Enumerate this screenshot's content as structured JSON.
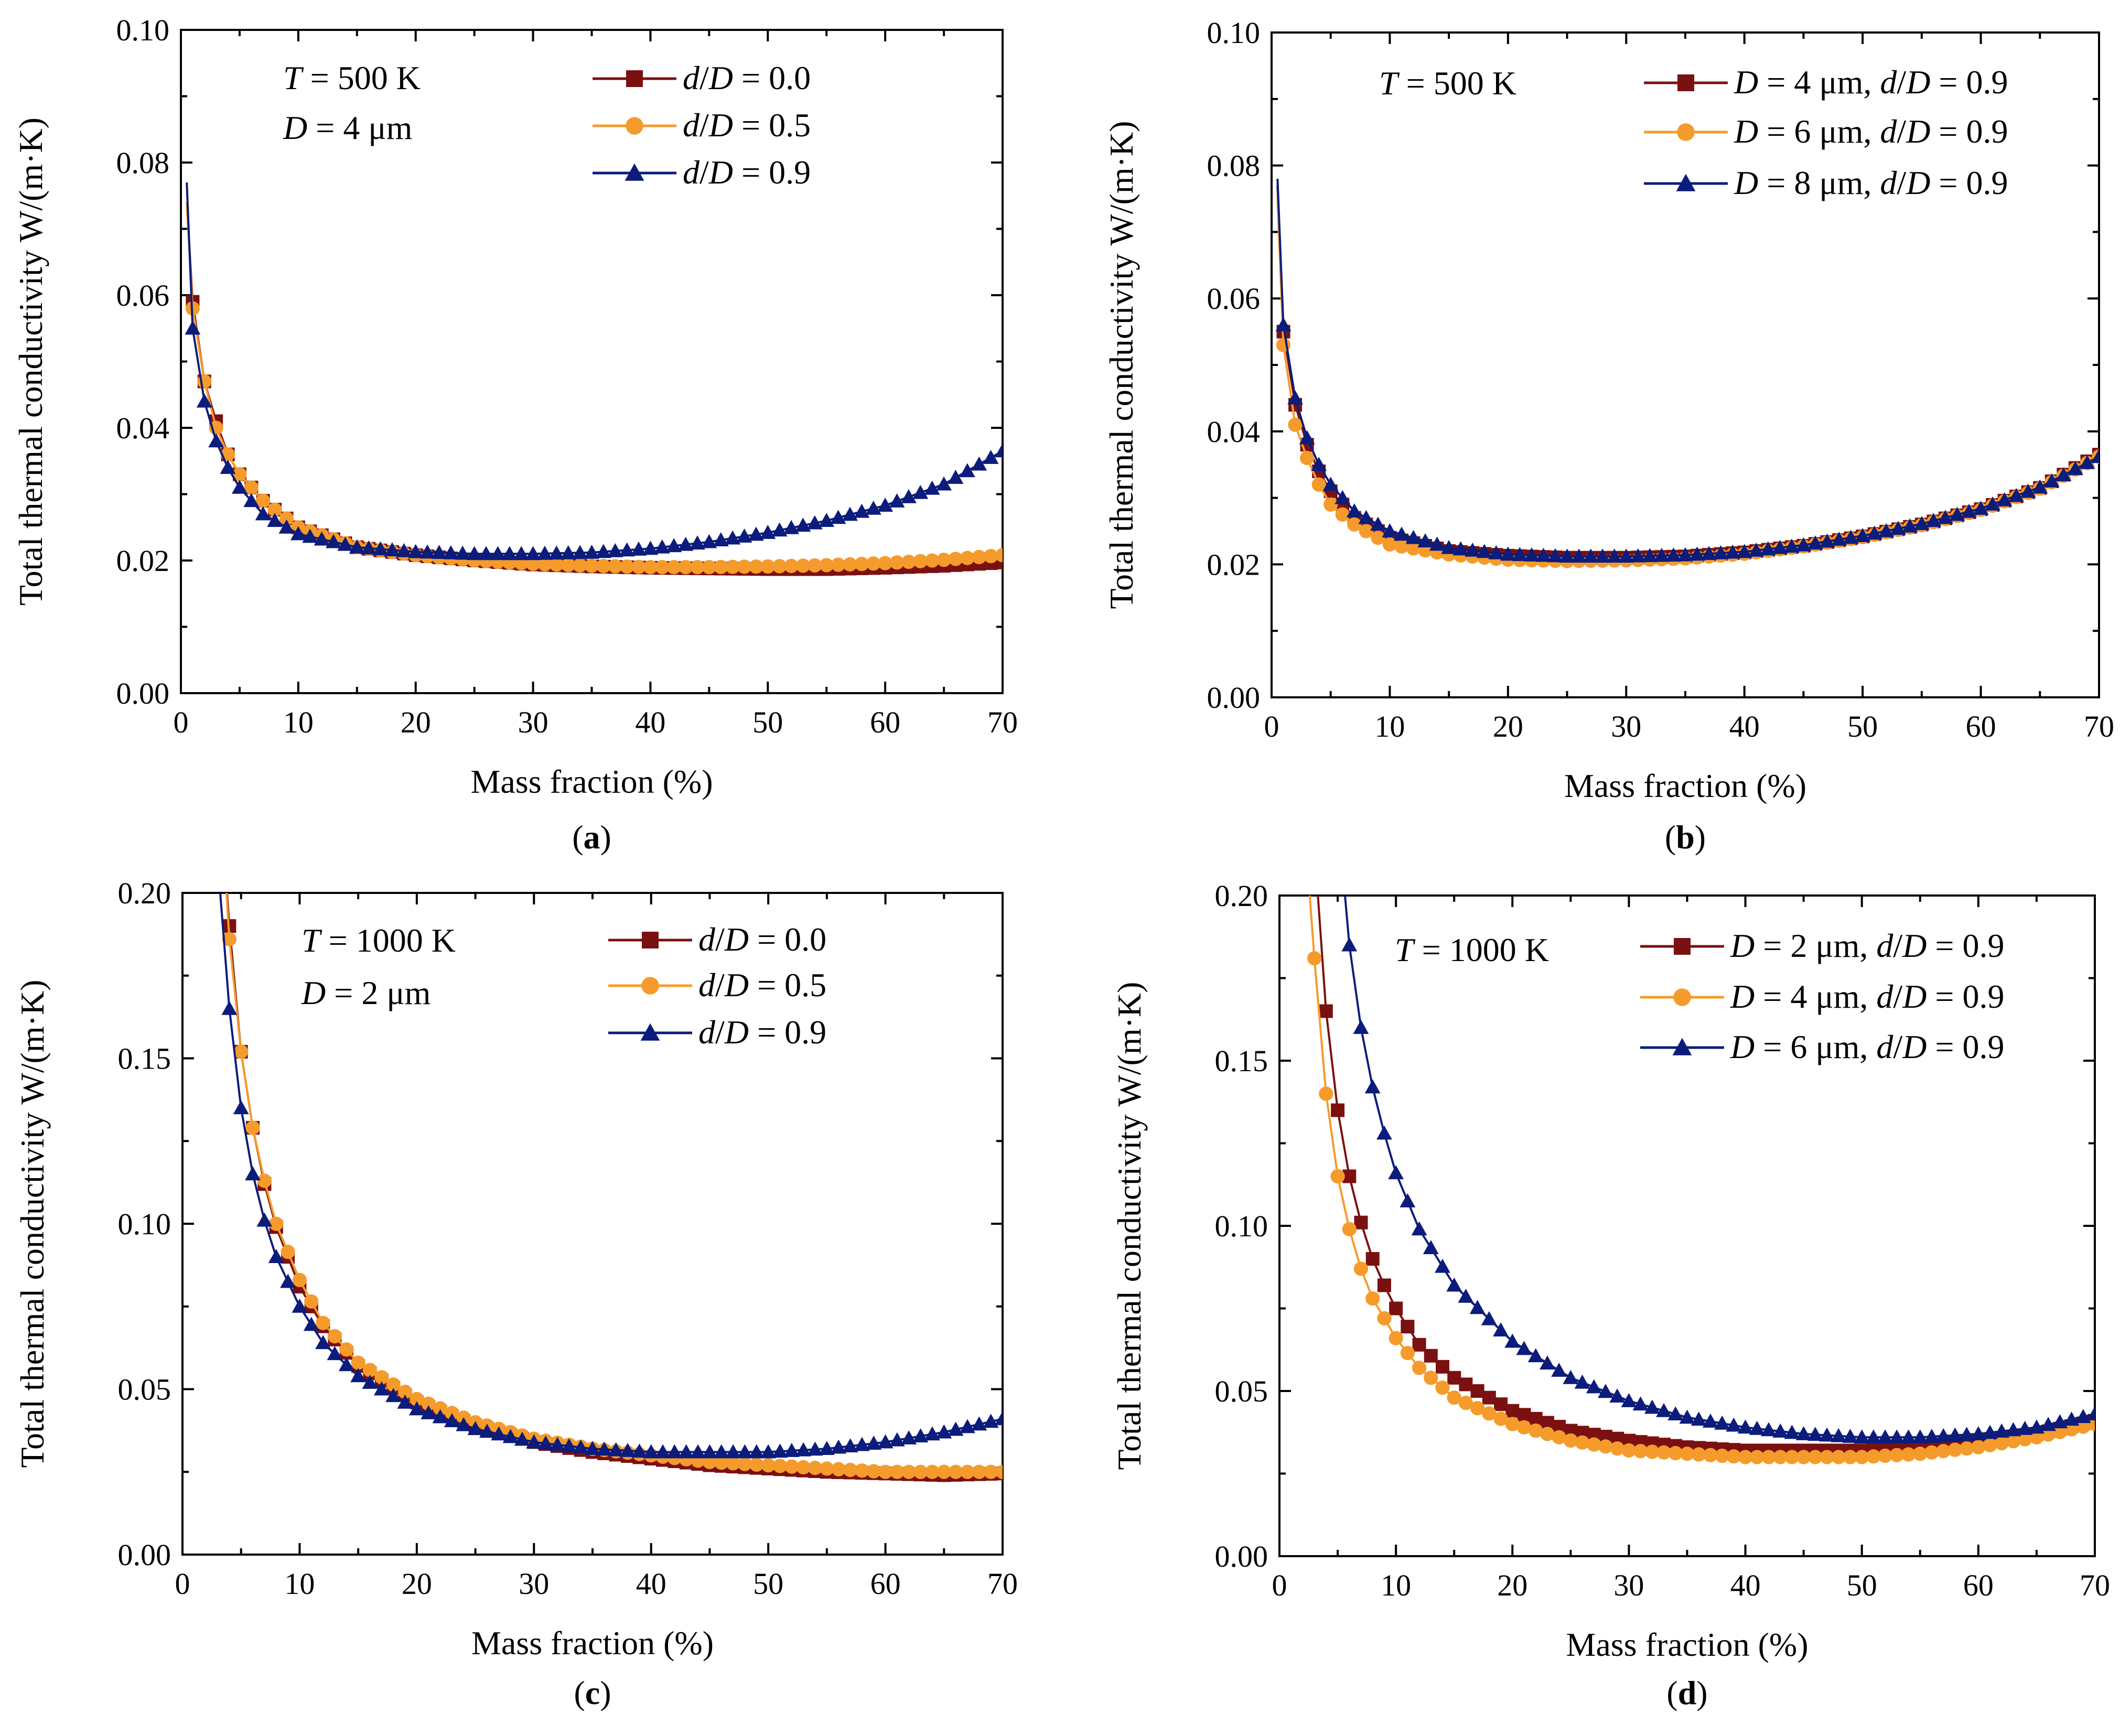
{
  "figure": {
    "panels": [
      {
        "id": "a",
        "label": "a",
        "annotations": [
          "T = 500 K",
          "D = 4 μm"
        ],
        "chart_series_style": [
          "square",
          "circle",
          "triangle"
        ]
      },
      {
        "id": "b",
        "label": "b",
        "annotations": [
          "T = 500 K"
        ],
        "chart_series_style": [
          "square",
          "circle",
          "triangle"
        ]
      },
      {
        "id": "c",
        "label": "c",
        "annotations": [
          "T = 1000 K",
          "D = 2 μm"
        ],
        "chart_series_style": [
          "square",
          "circle",
          "triangle"
        ]
      },
      {
        "id": "d",
        "label": "d",
        "annotations": [
          "T = 1000 K"
        ],
        "chart_series_style": [
          "square",
          "circle",
          "triangle"
        ]
      }
    ]
  },
  "colors": {
    "dark_red": "#7B1010",
    "orange": "#F59B2B",
    "navy": "#0C1C7C"
  },
  "chart_data": [
    {
      "type": "line",
      "title": "",
      "xlabel": "Mass fraction (%)",
      "ylabel": "Total thermal conductivity W/(m·K)",
      "xlim": [
        0,
        70
      ],
      "ylim": [
        0,
        0.1
      ],
      "xticks": [
        "0",
        "10",
        "20",
        "30",
        "40",
        "50",
        "60",
        "70"
      ],
      "yticks": [
        "0.00",
        "0.02",
        "0.04",
        "0.06",
        "0.08",
        "0.10"
      ],
      "legend_position": "top-right",
      "series": [
        {
          "name": "d/D = 0.0",
          "marker": "square",
          "color": "#7B1010",
          "x": [
            0.5,
            1,
            2,
            3,
            4,
            5,
            7,
            10,
            15,
            20,
            25,
            30,
            35,
            40,
            45,
            50,
            55,
            60,
            65,
            70
          ],
          "y": [
            0.074,
            0.059,
            0.047,
            0.041,
            0.036,
            0.033,
            0.029,
            0.025,
            0.022,
            0.0208,
            0.02,
            0.0194,
            0.0191,
            0.0189,
            0.0188,
            0.0187,
            0.0187,
            0.0189,
            0.0192,
            0.0197
          ]
        },
        {
          "name": "d/D = 0.5",
          "marker": "circle",
          "color": "#F59B2B",
          "x": [
            0.5,
            1,
            2,
            3,
            4,
            5,
            7,
            10,
            15,
            20,
            25,
            30,
            35,
            40,
            45,
            50,
            55,
            60,
            65,
            70
          ],
          "y": [
            0.074,
            0.058,
            0.047,
            0.04,
            0.036,
            0.033,
            0.029,
            0.025,
            0.022,
            0.0208,
            0.02,
            0.0195,
            0.0192,
            0.019,
            0.019,
            0.0191,
            0.0193,
            0.0196,
            0.0201,
            0.0208
          ]
        },
        {
          "name": "d/D = 0.9",
          "marker": "triangle",
          "color": "#0C1C7C",
          "x": [
            0.5,
            1,
            2,
            3,
            4,
            5,
            7,
            10,
            15,
            20,
            25,
            30,
            35,
            40,
            45,
            50,
            55,
            60,
            65,
            70
          ],
          "y": [
            0.077,
            0.055,
            0.044,
            0.038,
            0.034,
            0.031,
            0.027,
            0.024,
            0.022,
            0.0213,
            0.021,
            0.021,
            0.0212,
            0.0218,
            0.0228,
            0.0242,
            0.026,
            0.0283,
            0.0315,
            0.0365
          ]
        }
      ]
    },
    {
      "type": "line",
      "title": "",
      "xlabel": "Mass fraction (%)",
      "ylabel": "Total thermal conductivity W/(m·K)",
      "xlim": [
        0,
        70
      ],
      "ylim": [
        0,
        0.1
      ],
      "xticks": [
        "0",
        "10",
        "20",
        "30",
        "40",
        "50",
        "60",
        "70"
      ],
      "yticks": [
        "0.00",
        "0.02",
        "0.04",
        "0.06",
        "0.08",
        "0.10"
      ],
      "legend_position": "top-right",
      "series": [
        {
          "name": "D = 4 μm, d/D = 0.9",
          "marker": "square",
          "color": "#7B1010",
          "x": [
            0.5,
            1,
            2,
            3,
            4,
            5,
            7,
            10,
            15,
            20,
            25,
            30,
            35,
            40,
            45,
            50,
            55,
            60,
            65,
            70
          ],
          "y": [
            0.077,
            0.055,
            0.044,
            0.038,
            0.034,
            0.031,
            0.027,
            0.024,
            0.022,
            0.0213,
            0.021,
            0.021,
            0.0212,
            0.0218,
            0.0228,
            0.0242,
            0.026,
            0.0283,
            0.0315,
            0.0365
          ]
        },
        {
          "name": "D = 6 μm, d/D = 0.9",
          "marker": "circle",
          "color": "#F59B2B",
          "x": [
            0.5,
            1,
            2,
            3,
            4,
            5,
            7,
            10,
            15,
            20,
            25,
            30,
            35,
            40,
            45,
            50,
            55,
            60,
            65,
            70
          ],
          "y": [
            0.075,
            0.053,
            0.041,
            0.036,
            0.032,
            0.029,
            0.026,
            0.023,
            0.0215,
            0.0207,
            0.0205,
            0.0206,
            0.0209,
            0.0216,
            0.0227,
            0.0241,
            0.0259,
            0.0282,
            0.0314,
            0.0362
          ]
        },
        {
          "name": "D = 8 μm, d/D = 0.9",
          "marker": "triangle",
          "color": "#0C1C7C",
          "x": [
            0.5,
            1,
            2,
            3,
            4,
            5,
            7,
            10,
            15,
            20,
            25,
            30,
            35,
            40,
            45,
            50,
            55,
            60,
            65,
            70
          ],
          "y": [
            0.078,
            0.056,
            0.045,
            0.039,
            0.035,
            0.032,
            0.028,
            0.025,
            0.0225,
            0.0215,
            0.0212,
            0.0212,
            0.0214,
            0.0219,
            0.0229,
            0.0243,
            0.0261,
            0.0284,
            0.0316,
            0.0362
          ]
        }
      ]
    },
    {
      "type": "line",
      "title": "",
      "xlabel": "Mass fraction (%)",
      "ylabel": "Total thermal conductivity W/(m·K)",
      "xlim": [
        0,
        70
      ],
      "ylim": [
        0,
        0.2
      ],
      "xticks": [
        "0",
        "10",
        "20",
        "30",
        "40",
        "50",
        "60",
        "70"
      ],
      "yticks": [
        "0.00",
        "0.05",
        "0.10",
        "0.15",
        "0.20"
      ],
      "legend_position": "top-right",
      "series": [
        {
          "name": "d/D = 0.0",
          "marker": "square",
          "color": "#7B1010",
          "x": [
            3.5,
            4,
            5,
            6,
            7,
            8,
            10,
            12,
            15,
            20,
            25,
            30,
            35,
            40,
            45,
            50,
            55,
            60,
            65,
            70
          ],
          "y": [
            0.215,
            0.19,
            0.152,
            0.129,
            0.112,
            0.099,
            0.081,
            0.069,
            0.057,
            0.046,
            0.039,
            0.034,
            0.031,
            0.029,
            0.027,
            0.026,
            0.025,
            0.0245,
            0.024,
            0.0245
          ]
        },
        {
          "name": "d/D = 0.5",
          "marker": "circle",
          "color": "#F59B2B",
          "x": [
            3.5,
            4,
            5,
            6,
            7,
            8,
            10,
            12,
            15,
            20,
            25,
            30,
            35,
            40,
            45,
            50,
            55,
            60,
            65,
            70
          ],
          "y": [
            0.215,
            0.186,
            0.152,
            0.129,
            0.113,
            0.1,
            0.083,
            0.07,
            0.058,
            0.047,
            0.04,
            0.035,
            0.032,
            0.03,
            0.028,
            0.027,
            0.026,
            0.025,
            0.025,
            0.025
          ]
        },
        {
          "name": "d/D = 0.9",
          "marker": "triangle",
          "color": "#0C1C7C",
          "x": [
            3,
            4,
            5,
            6,
            7,
            8,
            10,
            12,
            15,
            20,
            25,
            30,
            35,
            40,
            45,
            50,
            55,
            60,
            65,
            70
          ],
          "y": [
            0.21,
            0.165,
            0.135,
            0.115,
            0.101,
            0.09,
            0.075,
            0.064,
            0.054,
            0.044,
            0.038,
            0.034,
            0.032,
            0.031,
            0.031,
            0.031,
            0.032,
            0.034,
            0.037,
            0.041
          ]
        }
      ]
    },
    {
      "type": "line",
      "title": "",
      "xlabel": "Mass fraction (%)",
      "ylabel": "Total thermal conductivity W/(m·K)",
      "xlim": [
        0,
        70
      ],
      "ylim": [
        0,
        0.2
      ],
      "xticks": [
        "0",
        "10",
        "20",
        "30",
        "40",
        "50",
        "60",
        "70"
      ],
      "yticks": [
        "0.00",
        "0.05",
        "0.10",
        "0.15",
        "0.20"
      ],
      "legend_position": "top-right",
      "series": [
        {
          "name": "D = 2 μm, d/D = 0.9",
          "marker": "square",
          "color": "#7B1010",
          "x": [
            3.2,
            4,
            5,
            6,
            7,
            8,
            9,
            10,
            12,
            15,
            20,
            25,
            30,
            35,
            40,
            45,
            50,
            55,
            60,
            65,
            70
          ],
          "y": [
            0.205,
            0.165,
            0.135,
            0.115,
            0.101,
            0.09,
            0.082,
            0.075,
            0.064,
            0.054,
            0.044,
            0.038,
            0.035,
            0.033,
            0.032,
            0.032,
            0.032,
            0.033,
            0.035,
            0.037,
            0.041
          ]
        },
        {
          "name": "D = 4 μm, d/D = 0.9",
          "marker": "circle",
          "color": "#F59B2B",
          "x": [
            2.5,
            3,
            4,
            5,
            6,
            7,
            8,
            10,
            12,
            15,
            20,
            25,
            30,
            35,
            40,
            45,
            50,
            55,
            60,
            65,
            70
          ],
          "y": [
            0.205,
            0.181,
            0.14,
            0.115,
            0.099,
            0.087,
            0.078,
            0.066,
            0.057,
            0.048,
            0.04,
            0.035,
            0.032,
            0.031,
            0.03,
            0.03,
            0.03,
            0.031,
            0.033,
            0.036,
            0.04
          ]
        },
        {
          "name": "D = 6 μm, d/D = 0.9",
          "marker": "triangle",
          "color": "#0C1C7C",
          "x": [
            5.5,
            6,
            7,
            8,
            9,
            10,
            12,
            15,
            20,
            25,
            30,
            35,
            40,
            45,
            50,
            55,
            60,
            65,
            70
          ],
          "y": [
            0.205,
            0.185,
            0.16,
            0.142,
            0.128,
            0.116,
            0.099,
            0.082,
            0.065,
            0.054,
            0.047,
            0.042,
            0.039,
            0.037,
            0.036,
            0.036,
            0.037,
            0.039,
            0.043
          ]
        }
      ]
    }
  ]
}
